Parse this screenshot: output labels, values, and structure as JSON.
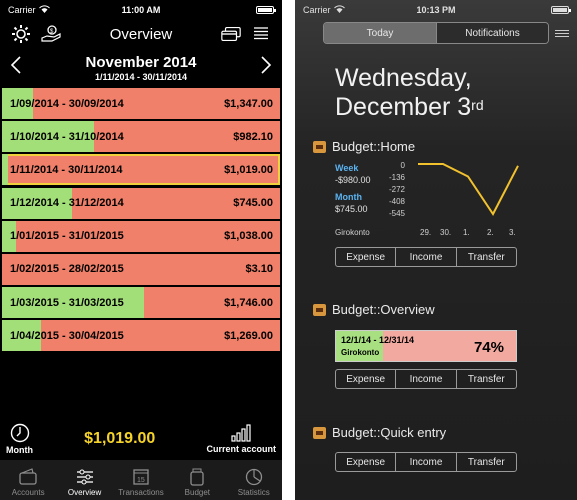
{
  "left": {
    "status": {
      "carrier": "Carrier",
      "time": "11:00 AM"
    },
    "toolbar": {
      "title": "Overview",
      "settings_icon": "gear-icon",
      "budget_icon": "hand-money-icon",
      "cards_icon": "cards-icon",
      "list_icon": "list-icon"
    },
    "month": {
      "name": "November 2014",
      "range": "1/11/2014 - 30/11/2014",
      "prev_icon": "chevron-left-icon",
      "next_icon": "chevron-right-icon"
    },
    "periods": [
      {
        "range": "1/09/2014 - 30/09/2014",
        "amount": "$1,347.00",
        "progress": 0.11
      },
      {
        "range": "1/10/2014 - 31/10/2014",
        "amount": "$982.10",
        "progress": 0.33
      },
      {
        "range": "1/11/2014 - 30/11/2014",
        "amount": "$1,019.00",
        "progress": 0.02,
        "selected": true
      },
      {
        "range": "1/12/2014 - 31/12/2014",
        "amount": "$745.00",
        "progress": 0.25
      },
      {
        "range": "1/01/2015 - 31/01/2015",
        "amount": "$1,038.00",
        "progress": 0.05
      },
      {
        "range": "1/02/2015 - 28/02/2015",
        "amount": "$3.10",
        "progress": 0.0
      },
      {
        "range": "1/03/2015 - 31/03/2015",
        "amount": "$1,746.00",
        "progress": 0.51
      },
      {
        "range": "1/04/2015 - 30/04/2015",
        "amount": "$1,269.00",
        "progress": 0.14
      }
    ],
    "summary": {
      "left_label": "Month",
      "amount": "$1,019.00",
      "right_label": "Current account",
      "clock_icon": "clock-icon",
      "bars_icon": "bars-icon"
    },
    "tabs": [
      {
        "label": "Accounts",
        "icon": "wallet-icon",
        "active": false
      },
      {
        "label": "Overview",
        "icon": "sliders-icon",
        "active": true
      },
      {
        "label": "Transactions",
        "icon": "calendar-icon",
        "active": false,
        "badge": "15"
      },
      {
        "label": "Budget",
        "icon": "jar-icon",
        "active": false
      },
      {
        "label": "Statistics",
        "icon": "pie-icon",
        "active": false
      }
    ]
  },
  "right": {
    "status": {
      "carrier": "Carrier",
      "time": "10:13 PM"
    },
    "segments": {
      "today": "Today",
      "notifications": "Notifications"
    },
    "date_line1": "Wednesday,",
    "date_line2": "December 3",
    "date_suffix": "rd",
    "home": {
      "title": "Budget::Home",
      "week_label": "Week",
      "week_value": "-$980.00",
      "month_label": "Month",
      "month_value": "$745.00",
      "account": "Girokonto",
      "ticks": [
        "0",
        "-136",
        "-272",
        "-408",
        "-545"
      ],
      "xlabels": [
        "29.",
        "30.",
        "1.",
        "2.",
        "3."
      ],
      "line_values": [
        0,
        0,
        -136,
        -545,
        -20
      ]
    },
    "overview": {
      "title": "Budget::Overview",
      "range": "12/1/14 - 12/31/14",
      "account": "Girokonto",
      "percent": "74%",
      "progress": 0.26
    },
    "quick": {
      "title": "Budget::Quick entry"
    },
    "buttons": {
      "expense": "Expense",
      "income": "Income",
      "transfer": "Transfer"
    }
  }
}
